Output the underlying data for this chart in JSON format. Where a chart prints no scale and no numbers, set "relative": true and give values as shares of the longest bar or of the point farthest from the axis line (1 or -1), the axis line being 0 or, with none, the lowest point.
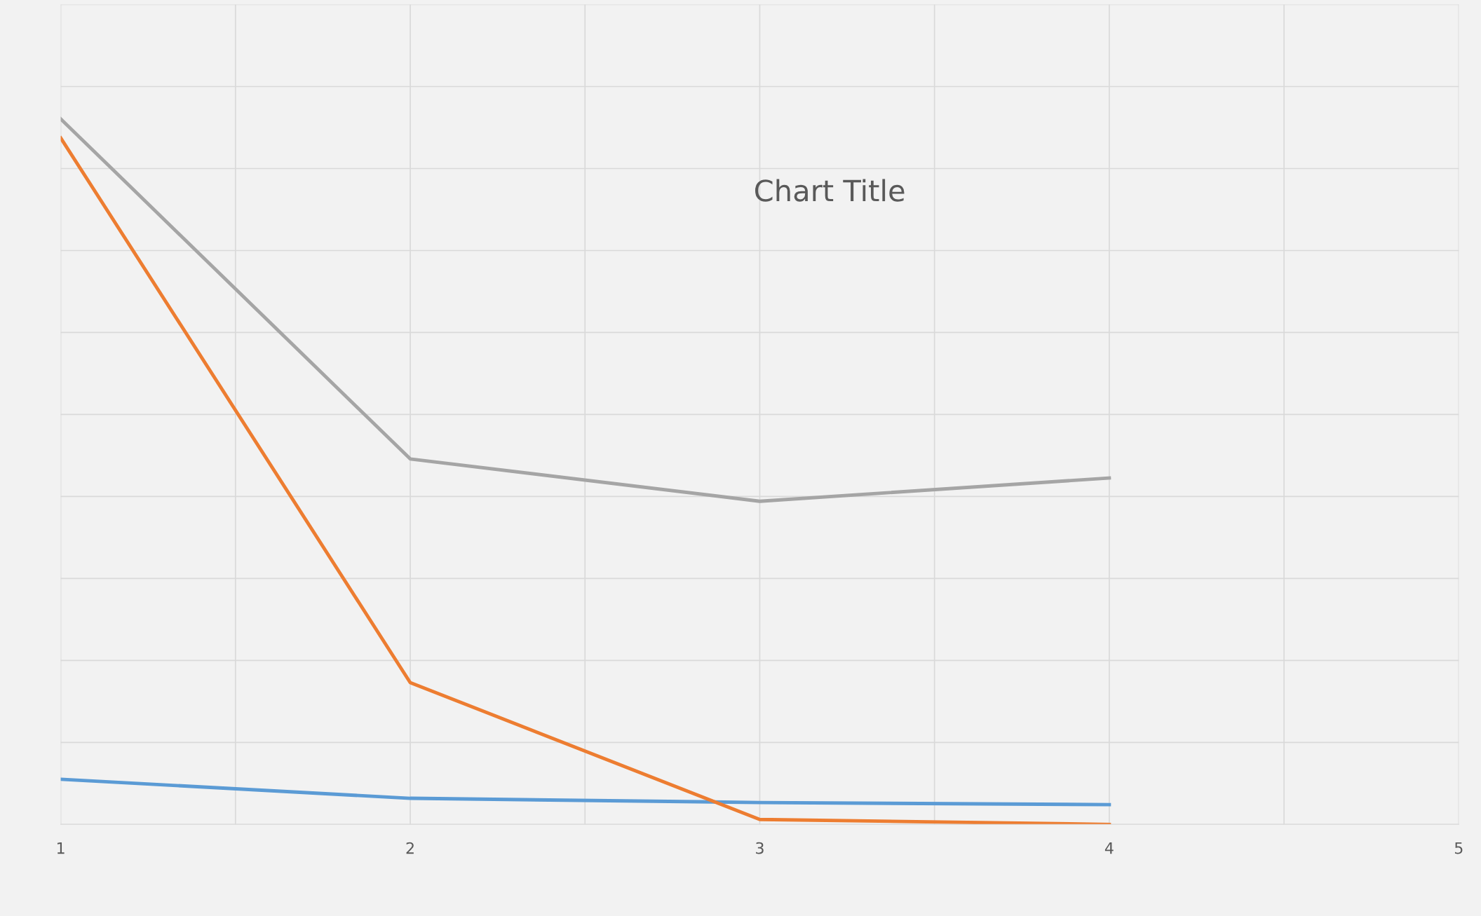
{
  "chart_data": {
    "type": "line",
    "title": "Chart Title",
    "relative": true,
    "x": [
      1,
      2,
      3,
      4
    ],
    "xlim": [
      1,
      5
    ],
    "xticks": [
      1,
      {
        "value": 1.5,
        "label": null
      },
      2,
      {
        "value": 2.5,
        "label": null
      },
      3,
      {
        "value": 3.5,
        "label": null
      },
      4,
      {
        "value": 4.5,
        "label": null
      },
      5
    ],
    "grid": true,
    "marker": "none",
    "line_style": "solid",
    "series": [
      {
        "color": "#5b9bd5",
        "values": [
          0.064,
          0.037,
          0.031,
          0.028
        ]
      },
      {
        "color": "#ed7d31",
        "values": [
          0.973,
          0.201,
          0.007,
          0
        ]
      },
      {
        "color": "#a5a5a5",
        "values": [
          1,
          0.518,
          0.458,
          0.491
        ]
      }
    ]
  }
}
